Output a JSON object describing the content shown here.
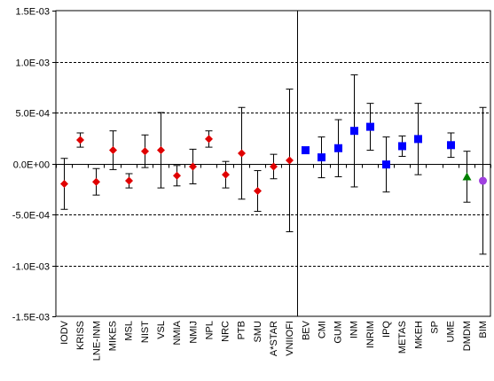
{
  "chart_data": {
    "type": "scatter",
    "title": "",
    "xlabel": "",
    "ylabel": "",
    "ylim": [
      -0.0015,
      0.0015
    ],
    "y_ticks": [
      "1.5E-03",
      "1.0E-03",
      "5.0E-04",
      "0.0E+00",
      "-5.0E-04",
      "-1.0E-03",
      "-1.5E-03"
    ],
    "y_tick_values": [
      0.0015,
      0.001,
      0.0005,
      0,
      -0.0005,
      -0.001,
      -0.0015
    ],
    "grid": "dashed horizontal at major ticks",
    "divider_after_category": "VNIIOFI",
    "categories": [
      "IODV",
      "KRISS",
      "LNE-INM",
      "MIKES",
      "MSL",
      "NIST",
      "VSL",
      "NMIA",
      "NMIJ",
      "NPL",
      "NRC",
      "PTB",
      "SMU",
      "A*STAR",
      "VNIIOFI",
      "BEV",
      "CMI",
      "GUM",
      "INM",
      "INRIM",
      "IPQ",
      "METAS",
      "MKEH",
      "SP",
      "UME",
      "DMDM",
      "BIM"
    ],
    "points": [
      {
        "label": "IODV",
        "y": -0.0002,
        "err": 0.00025,
        "marker": "diamond",
        "color": "#e00000"
      },
      {
        "label": "KRISS",
        "y": 0.00023,
        "err": 7e-05,
        "marker": "diamond",
        "color": "#e00000"
      },
      {
        "label": "LNE-INM",
        "y": -0.00018,
        "err": 0.00013,
        "marker": "diamond",
        "color": "#e00000"
      },
      {
        "label": "MIKES",
        "y": 0.00013,
        "err": 0.00019,
        "marker": "diamond",
        "color": "#e00000"
      },
      {
        "label": "MSL",
        "y": -0.00017,
        "err": 7e-05,
        "marker": "diamond",
        "color": "#e00000"
      },
      {
        "label": "NIST",
        "y": 0.00012,
        "err": 0.00016,
        "marker": "diamond",
        "color": "#e00000"
      },
      {
        "label": "VSL",
        "y": 0.00013,
        "err": 0.00037,
        "marker": "diamond",
        "color": "#e00000"
      },
      {
        "label": "NMIA",
        "y": -0.00012,
        "err": 0.0001,
        "marker": "diamond",
        "color": "#e00000"
      },
      {
        "label": "NMIJ",
        "y": -3e-05,
        "err": 0.00017,
        "marker": "diamond",
        "color": "#e00000"
      },
      {
        "label": "NPL",
        "y": 0.00024,
        "err": 8e-05,
        "marker": "diamond",
        "color": "#e00000"
      },
      {
        "label": "NRC",
        "y": -0.00011,
        "err": 0.00013,
        "marker": "diamond",
        "color": "#e00000"
      },
      {
        "label": "PTB",
        "y": 0.0001,
        "err": 0.00045,
        "marker": "diamond",
        "color": "#e00000"
      },
      {
        "label": "SMU",
        "y": -0.00027,
        "err": 0.0002,
        "marker": "diamond",
        "color": "#e00000"
      },
      {
        "label": "A*STAR",
        "y": -3e-05,
        "err": 0.00012,
        "marker": "diamond",
        "color": "#e00000"
      },
      {
        "label": "VNIIOFI",
        "y": 3e-05,
        "err": 0.0007,
        "marker": "diamond",
        "color": "#e00000"
      },
      {
        "label": "BEV",
        "y": 0.00013,
        "err": null,
        "marker": "square",
        "color": "#0000ff"
      },
      {
        "label": "CMI",
        "y": 6e-05,
        "err": 0.0002,
        "marker": "square",
        "color": "#0000ff"
      },
      {
        "label": "GUM",
        "y": 0.00015,
        "err": 0.00028,
        "marker": "square",
        "color": "#0000ff"
      },
      {
        "label": "INM",
        "y": 0.00032,
        "err": 0.00055,
        "marker": "square",
        "color": "#0000ff"
      },
      {
        "label": "INRIM",
        "y": 0.00036,
        "err": 0.00023,
        "marker": "square",
        "color": "#0000ff"
      },
      {
        "label": "IPQ",
        "y": -1e-05,
        "err": 0.00027,
        "marker": "square",
        "color": "#0000ff"
      },
      {
        "label": "METAS",
        "y": 0.00017,
        "err": 0.0001,
        "marker": "square",
        "color": "#0000ff"
      },
      {
        "label": "MKEH",
        "y": 0.00024,
        "err": 0.00035,
        "marker": "square",
        "color": "#0000ff"
      },
      {
        "label": "SP",
        "y": null,
        "err": null,
        "marker": "none",
        "color": "#0000ff"
      },
      {
        "label": "UME",
        "y": 0.00018,
        "err": 0.00012,
        "marker": "square",
        "color": "#0000ff"
      },
      {
        "label": "DMDM",
        "y": -0.00013,
        "err": 0.00025,
        "marker": "triangle",
        "color": "#008000"
      },
      {
        "label": "BIM",
        "y": -0.00017,
        "err": 0.00072,
        "marker": "circle",
        "color": "#a040e0"
      }
    ]
  }
}
